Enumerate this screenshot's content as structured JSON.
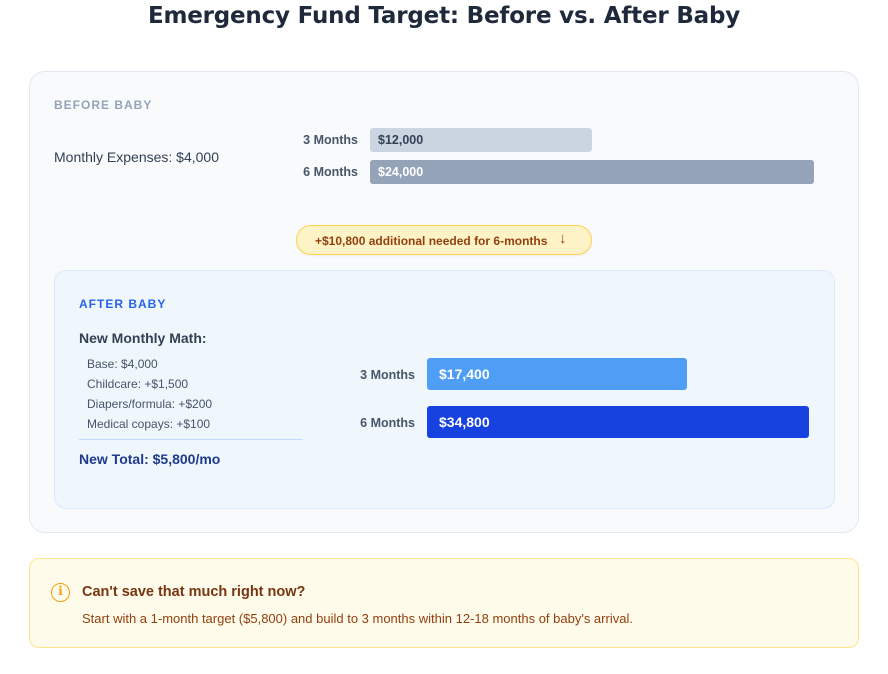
{
  "title": "Emergency Fund Target: Before vs. After Baby",
  "before": {
    "section_label": "BEFORE BABY",
    "monthly_expenses": "Monthly Expenses: $4,000"
  },
  "gap_pill": {
    "text": "+$10,800 additional needed for 6-months",
    "icon": "arrow-down-icon"
  },
  "after": {
    "section_label": "AFTER BABY",
    "math_title": "New Monthly Math:",
    "math_items": [
      "Base: $4,000",
      "Childcare: +$1,500",
      "Diapers/formula: +$200",
      "Medical copays: +$100"
    ],
    "total": "New Total: $5,800/mo"
  },
  "chart_data": [
    {
      "type": "bar",
      "orientation": "horizontal",
      "categories": [
        "3 Months",
        "6 Months"
      ],
      "values": [
        12000,
        24000
      ],
      "value_labels": [
        "$12,000",
        "$24,000"
      ],
      "colors": [
        "#cbd5e1",
        "#94a3b8"
      ]
    },
    {
      "type": "bar",
      "orientation": "horizontal",
      "categories": [
        "3 Months",
        "6 Months"
      ],
      "values": [
        17400,
        34800
      ],
      "value_labels": [
        "$17,400",
        "$34,800"
      ],
      "colors": [
        "#4f9ef5",
        "#1742e0"
      ]
    }
  ],
  "note": {
    "icon": "info-icon",
    "title": "Can't save that much right now?",
    "text": "Start with a 1-month target ($5,800) and build to 3 months within 12-18 months of baby's arrival."
  }
}
